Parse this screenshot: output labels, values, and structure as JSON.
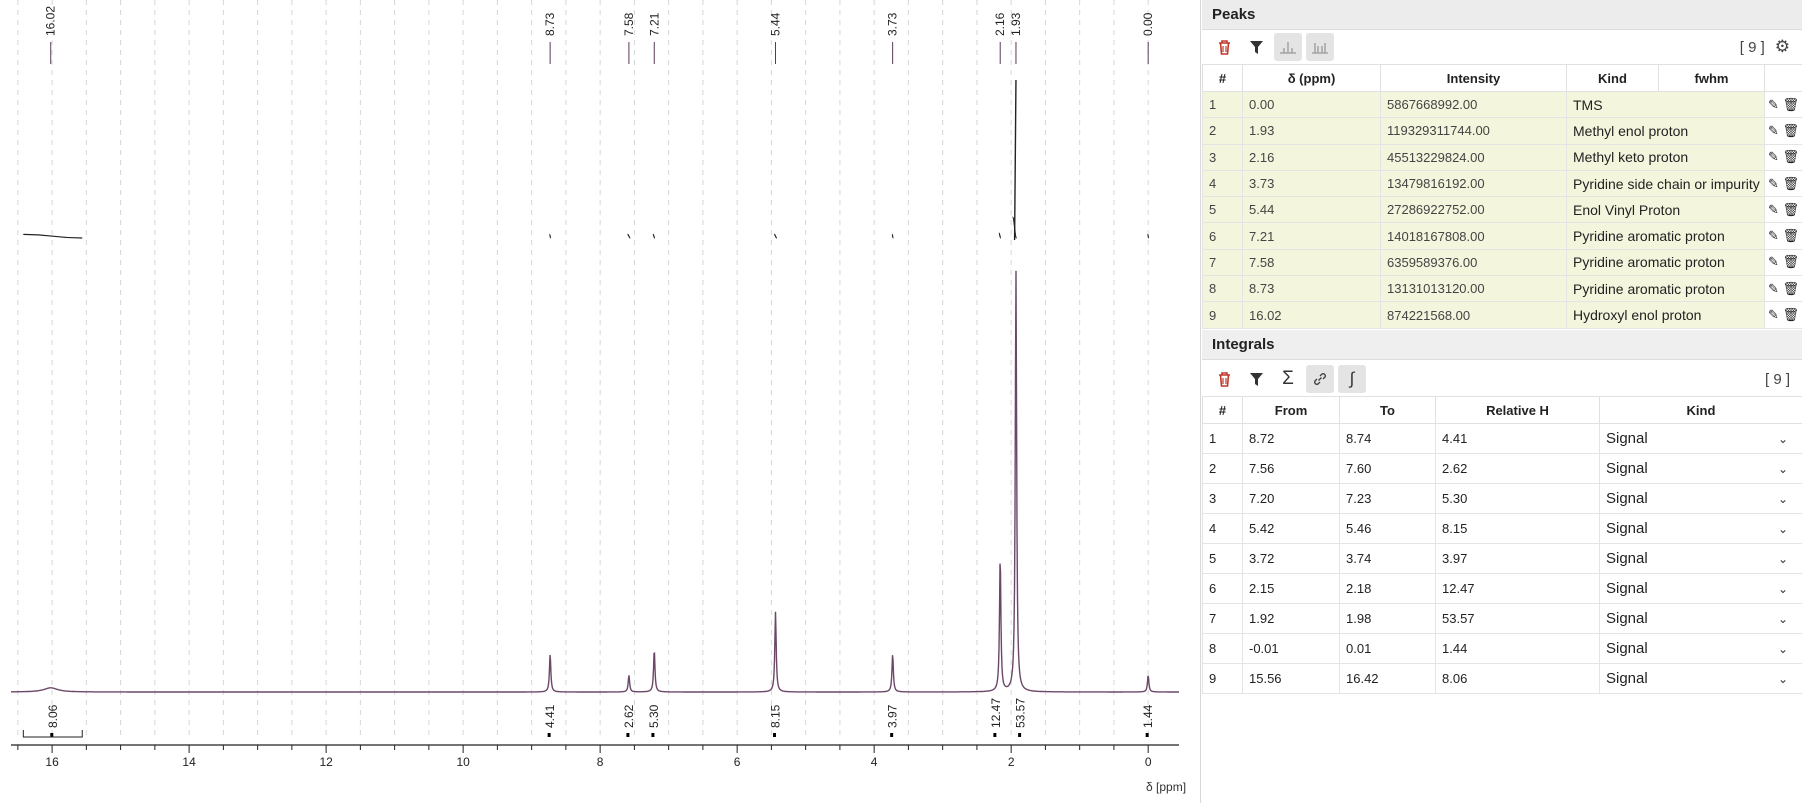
{
  "spectrum": {
    "x_axis_label": "δ [ppm]",
    "x_ticks": [
      "16",
      "14",
      "12",
      "10",
      "8",
      "6",
      "4",
      "2",
      "0"
    ],
    "peak_labels": [
      "16.02",
      "8.73",
      "7.58",
      "7.21",
      "5.44",
      "3.73",
      "2.16",
      "1.93",
      "0.00"
    ],
    "integral_labels": [
      "8.06",
      "4.41",
      "2.62",
      "5.30",
      "8.15",
      "3.97",
      "12.47",
      "53.57",
      "1.44"
    ],
    "line_color": "#6b4868"
  },
  "chart_data": {
    "type": "line",
    "xlabel": "δ [ppm]",
    "xlim": [
      16.6,
      -0.45
    ],
    "x_ticks": [
      16,
      14,
      12,
      10,
      8,
      6,
      4,
      2,
      0
    ],
    "peaks": [
      {
        "ppm": 16.02,
        "height": 0.01
      },
      {
        "ppm": 8.73,
        "height": 0.09
      },
      {
        "ppm": 7.58,
        "height": 0.04
      },
      {
        "ppm": 7.21,
        "height": 0.1
      },
      {
        "ppm": 5.44,
        "height": 0.19
      },
      {
        "ppm": 3.73,
        "height": 0.09
      },
      {
        "ppm": 2.16,
        "height": 0.32
      },
      {
        "ppm": 1.93,
        "height": 1.0
      },
      {
        "ppm": 0.0,
        "height": 0.04
      }
    ],
    "integrals": [
      {
        "from": 15.56,
        "to": 16.42,
        "value": "8.06"
      },
      {
        "from": 8.72,
        "to": 8.74,
        "value": "4.41"
      },
      {
        "from": 7.56,
        "to": 7.6,
        "value": "2.62"
      },
      {
        "from": 7.2,
        "to": 7.23,
        "value": "5.30"
      },
      {
        "from": 5.42,
        "to": 5.46,
        "value": "8.15"
      },
      {
        "from": 3.72,
        "to": 3.74,
        "value": "3.97"
      },
      {
        "from": 2.15,
        "to": 2.18,
        "value": "12.47"
      },
      {
        "from": 1.92,
        "to": 1.98,
        "value": "53.57"
      },
      {
        "from": -0.01,
        "to": 0.01,
        "value": "1.44"
      }
    ]
  },
  "peaks_panel": {
    "title": "Peaks",
    "count": "[ 9 ]",
    "columns": [
      "#",
      "δ (ppm)",
      "Intensity",
      "Kind",
      "fwhm"
    ],
    "rows": [
      {
        "n": "1",
        "ppm": "0.00",
        "intensity": "5867668992.00",
        "kind": "TMS"
      },
      {
        "n": "2",
        "ppm": "1.93",
        "intensity": "119329311744.00",
        "kind": "Methyl enol proton"
      },
      {
        "n": "3",
        "ppm": "2.16",
        "intensity": "45513229824.00",
        "kind": "Methyl keto proton"
      },
      {
        "n": "4",
        "ppm": "3.73",
        "intensity": "13479816192.00",
        "kind": "Pyridine side chain or impurity"
      },
      {
        "n": "5",
        "ppm": "5.44",
        "intensity": "27286922752.00",
        "kind": "Enol Vinyl Proton"
      },
      {
        "n": "6",
        "ppm": "7.21",
        "intensity": "14018167808.00",
        "kind": "Pyridine aromatic proton"
      },
      {
        "n": "7",
        "ppm": "7.58",
        "intensity": "6359589376.00",
        "kind": "Pyridine aromatic proton"
      },
      {
        "n": "8",
        "ppm": "8.73",
        "intensity": "13131013120.00",
        "kind": "Pyridine aromatic proton"
      },
      {
        "n": "9",
        "ppm": "16.02",
        "intensity": "874221568.00",
        "kind": "Hydroxyl enol proton"
      }
    ]
  },
  "integrals_panel": {
    "title": "Integrals",
    "count": "[ 9 ]",
    "columns": [
      "#",
      "From",
      "To",
      "Relative H",
      "Kind"
    ],
    "rows": [
      {
        "n": "1",
        "from": "8.72",
        "to": "8.74",
        "rel": "4.41",
        "kind": "Signal"
      },
      {
        "n": "2",
        "from": "7.56",
        "to": "7.60",
        "rel": "2.62",
        "kind": "Signal"
      },
      {
        "n": "3",
        "from": "7.20",
        "to": "7.23",
        "rel": "5.30",
        "kind": "Signal"
      },
      {
        "n": "4",
        "from": "5.42",
        "to": "5.46",
        "rel": "8.15",
        "kind": "Signal"
      },
      {
        "n": "5",
        "from": "3.72",
        "to": "3.74",
        "rel": "3.97",
        "kind": "Signal"
      },
      {
        "n": "6",
        "from": "2.15",
        "to": "2.18",
        "rel": "12.47",
        "kind": "Signal"
      },
      {
        "n": "7",
        "from": "1.92",
        "to": "1.98",
        "rel": "53.57",
        "kind": "Signal"
      },
      {
        "n": "8",
        "from": "-0.01",
        "to": "0.01",
        "rel": "1.44",
        "kind": "Signal"
      },
      {
        "n": "9",
        "from": "15.56",
        "to": "16.42",
        "rel": "8.06",
        "kind": "Signal"
      }
    ]
  },
  "icons": {
    "delete": "trash-icon",
    "filter": "filter-icon",
    "peak_picking": "peak-icon",
    "multiplet": "multiplet-icon",
    "settings": "gear-icon",
    "sum": "sigma-icon",
    "link": "link-icon",
    "integral": "integral-icon",
    "edit": "edit-icon"
  }
}
